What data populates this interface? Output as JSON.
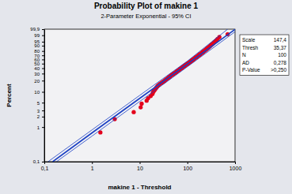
{
  "chart_data": {
    "type": "probability",
    "title": "Probability Plot of makine 1",
    "subtitle": "2-Parameter Exponential - 95% CI",
    "x_label": "makine 1 - Threshold",
    "y_label": "Percent",
    "log": "x",
    "xlim": [
      0.1,
      1000
    ],
    "xticks": [
      {
        "value": 0.1,
        "label": "0,1"
      },
      1,
      10,
      100,
      1000
    ],
    "ylim": [
      0.1,
      99.9
    ],
    "yticks": [
      {
        "value": 0.1,
        "label": "0,1"
      },
      1,
      2,
      3,
      5,
      10,
      20,
      30,
      40,
      50,
      60,
      70,
      80,
      90,
      95,
      99,
      {
        "value": 99.9,
        "label": "99,9"
      }
    ],
    "stats": [
      {
        "label": "Scale",
        "value": "147,4"
      },
      {
        "label": "Thresh",
        "value": "35,37"
      },
      {
        "label": "N",
        "value": "100"
      },
      {
        "label": "AD",
        "value": "0,278"
      },
      {
        "label": "P-Value",
        "value": ">0,250"
      }
    ],
    "series": [
      {
        "type": "scatter",
        "marker": "circle",
        "color": "#e3001b",
        "x": [
          1.5,
          3.0,
          7.5,
          10.5,
          11,
          14,
          15,
          17,
          18.5,
          19,
          20,
          21,
          22,
          23,
          24,
          25.5,
          27,
          29,
          31,
          33,
          34.5,
          36,
          38,
          40,
          41.5,
          43,
          45,
          47,
          49,
          51,
          53.5,
          56,
          58,
          60,
          62,
          64,
          67,
          69,
          71,
          73,
          76,
          79,
          81,
          83,
          86,
          88,
          91,
          94,
          97,
          100,
          103,
          106,
          109,
          112,
          115,
          118,
          121,
          125,
          128,
          131,
          134,
          138,
          141,
          145,
          149,
          153,
          157,
          161,
          165,
          170,
          174,
          179,
          184,
          189,
          194,
          199,
          204,
          210,
          216,
          222,
          228,
          235,
          241,
          249,
          256,
          264,
          272,
          281,
          290,
          300,
          310,
          322,
          335,
          350,
          365,
          385,
          405,
          430,
          470,
          700
        ],
        "values": [
          0.7,
          1.69,
          2.69,
          3.69,
          4.68,
          5.68,
          6.67,
          7.67,
          8.67,
          9.66,
          10.66,
          11.65,
          12.65,
          13.65,
          14.64,
          15.64,
          16.63,
          17.63,
          18.63,
          19.62,
          20.62,
          21.61,
          22.61,
          23.61,
          24.6,
          25.6,
          26.59,
          27.59,
          28.59,
          29.58,
          30.58,
          31.57,
          32.57,
          33.57,
          34.56,
          35.56,
          36.55,
          37.55,
          38.55,
          39.54,
          40.54,
          41.53,
          42.53,
          43.53,
          44.52,
          45.52,
          46.51,
          47.51,
          48.51,
          49.5,
          50.5,
          51.49,
          52.49,
          53.49,
          54.48,
          55.48,
          56.47,
          57.47,
          58.47,
          59.46,
          60.46,
          61.45,
          62.45,
          63.45,
          64.44,
          65.44,
          66.43,
          67.43,
          68.43,
          69.42,
          70.42,
          71.41,
          72.41,
          73.41,
          74.4,
          75.4,
          76.39,
          77.39,
          78.39,
          79.38,
          80.38,
          81.37,
          82.37,
          83.37,
          84.36,
          85.36,
          86.35,
          87.35,
          88.35,
          89.34,
          90.34,
          91.33,
          92.33,
          93.33,
          94.32,
          95.32,
          96.31,
          97.31,
          98.31,
          99.3
        ]
      },
      {
        "type": "line",
        "line_style": "solid",
        "color": "#1a3fc4",
        "x": [
          0.15,
          1,
          10,
          100,
          1000
        ],
        "values": [
          0.1,
          0.68,
          6.6,
          49.3,
          99.89
        ]
      },
      {
        "type": "line",
        "line_style": "solid",
        "color": "#1a3fc4",
        "x": [
          0.12,
          1,
          10,
          100,
          700
        ],
        "values": [
          0.1,
          0.83,
          8,
          56,
          99.9
        ]
      },
      {
        "type": "line",
        "line_style": "solid",
        "color": "#1a3fc4",
        "x": [
          0.18,
          1,
          10,
          100,
          1000
        ],
        "values": [
          0.1,
          0.55,
          5.4,
          43,
          99.7
        ]
      }
    ]
  }
}
